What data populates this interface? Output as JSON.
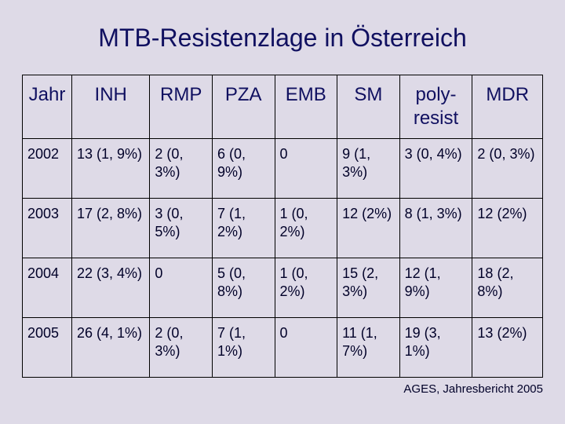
{
  "title": "MTB-Resistenzlage in Österreich",
  "source": "AGES, Jahresbericht 2005",
  "table": {
    "columns": [
      "Jahr",
      "INH",
      "RMP",
      "PZA",
      "EMB",
      "SM",
      "poly-resist",
      "MDR"
    ],
    "col_widths_pct": [
      9.5,
      15,
      12,
      12,
      12,
      12,
      14,
      13.5
    ],
    "header_fontsize": 24,
    "cell_fontsize": 18,
    "border_color": "#000000",
    "background_color": "#dedae7",
    "text_color": "#101060",
    "rows": [
      {
        "year": "2002",
        "inh": "13 (1, 9%)",
        "rmp": "2 (0, 3%)",
        "pza": "6 (0, 9%)",
        "emb": "0",
        "sm": "9 (1, 3%)",
        "poly": "3 (0, 4%)",
        "mdr": "2 (0, 3%)"
      },
      {
        "year": "2003",
        "inh": "17 (2, 8%)",
        "rmp": "3 (0, 5%)",
        "pza": "7 (1, 2%)",
        "emb": "1 (0, 2%)",
        "sm": "12 (2%)",
        "poly": "8 (1, 3%)",
        "mdr": "12 (2%)"
      },
      {
        "year": "2004",
        "inh": "22 (3, 4%)",
        "rmp": "0",
        "pza": "5 (0, 8%)",
        "emb": "1 (0, 2%)",
        "sm": "15 (2, 3%)",
        "poly": "12 (1, 9%)",
        "mdr": "18 (2, 8%)"
      },
      {
        "year": "2005",
        "inh": "26 (4, 1%)",
        "rmp": "2 (0, 3%)",
        "pza": "7 (1, 1%)",
        "emb": "0",
        "sm": "11 (1, 7%)",
        "poly": "19 (3, 1%)",
        "mdr": "13 (2%)"
      }
    ]
  }
}
